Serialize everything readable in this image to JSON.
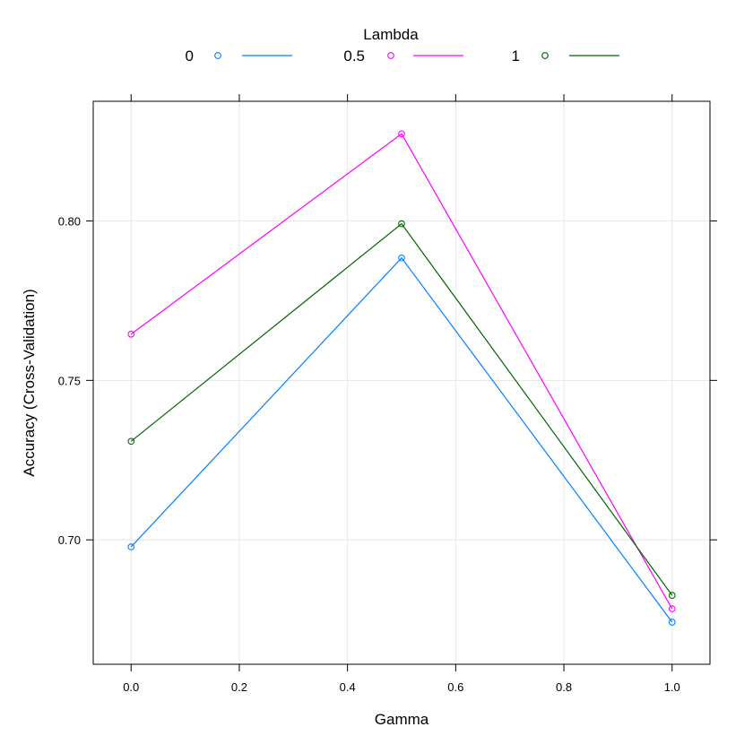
{
  "chart_data": {
    "type": "line",
    "xlabel": "Gamma",
    "ylabel": "Accuracy (Cross-Validation)",
    "legend_title": "Lambda",
    "legend_position": "top",
    "x": [
      0.0,
      0.5,
      1.0
    ],
    "xlim": [
      -0.07,
      1.07
    ],
    "ylim": [
      0.661,
      0.8375
    ],
    "x_ticks": [
      0.0,
      0.2,
      0.4,
      0.6,
      0.8,
      1.0
    ],
    "x_tick_labels": [
      "0.0",
      "0.2",
      "0.4",
      "0.6",
      "0.8",
      "1.0"
    ],
    "y_ticks": [
      0.7,
      0.75,
      0.8
    ],
    "y_tick_labels": [
      "0.70",
      "0.75",
      "0.80"
    ],
    "grid": true,
    "series": [
      {
        "name": "0",
        "color": "#0080ff",
        "values": [
          0.6978,
          0.7884,
          0.6742
        ]
      },
      {
        "name": "0.5",
        "color": "#ff00ff",
        "values": [
          0.7645,
          0.8273,
          0.6784
        ]
      },
      {
        "name": "1",
        "color": "#006400",
        "values": [
          0.7309,
          0.7991,
          0.6826
        ]
      }
    ]
  }
}
